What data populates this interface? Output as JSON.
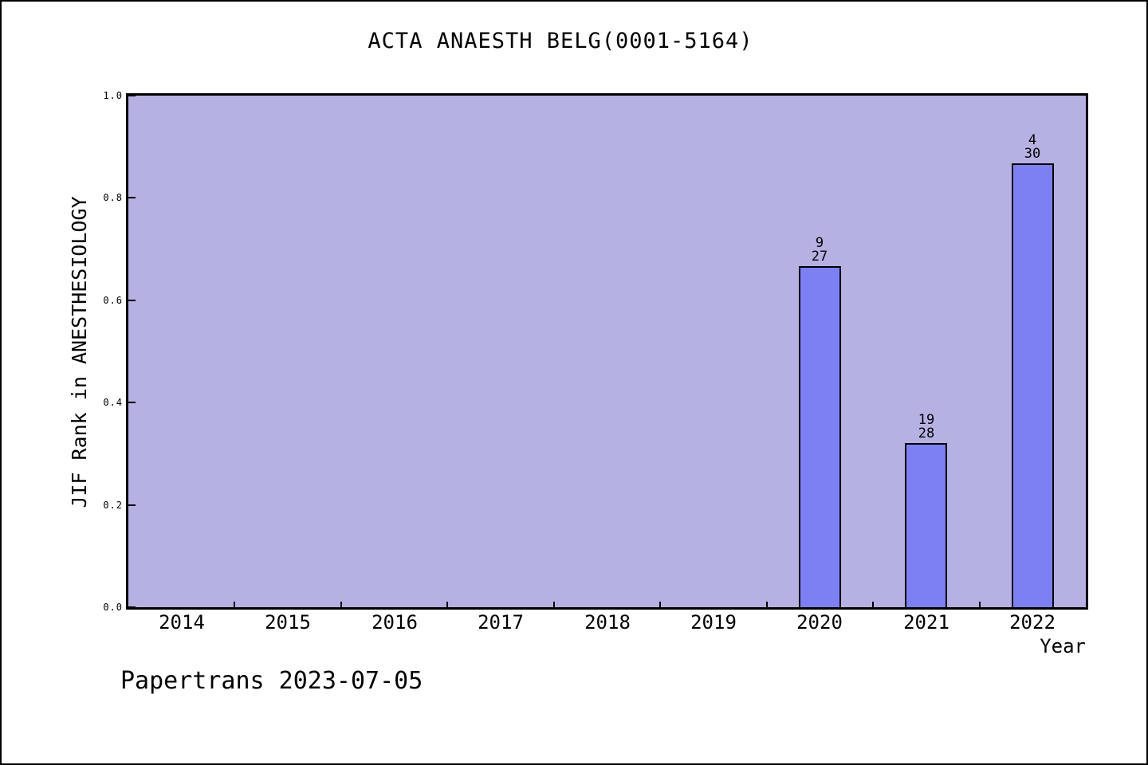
{
  "figure": {
    "watermark": "Papertrans 2023-07-05"
  },
  "chart_data": {
    "type": "bar",
    "title": "ACTA ANAESTH BELG(0001-5164)",
    "xlabel": "Year",
    "ylabel": "JIF Rank in ANESTHESIOLOGY",
    "categories": [
      2014,
      2015,
      2016,
      2017,
      2018,
      2019,
      2020,
      2021,
      2022
    ],
    "xlim": [
      2013.5,
      2022.5
    ],
    "ylim": [
      0.0,
      1.0
    ],
    "yticks": [
      0.0,
      0.2,
      0.4,
      0.6,
      0.8,
      1.0
    ],
    "ytick_labels": [
      "0.0",
      "0.2",
      "0.4",
      "0.6",
      "0.8",
      "1.0"
    ],
    "xticks_minor": [
      2014.5,
      2015.5,
      2016.5,
      2017.5,
      2018.5,
      2019.5,
      2020.5,
      2021.5
    ],
    "bar_width_years": 0.4,
    "grid": false,
    "legend": null,
    "bars": [
      {
        "x": 2020,
        "value": 0.667,
        "rank": "9",
        "total": "27"
      },
      {
        "x": 2021,
        "value": 0.321,
        "rank": "19",
        "total": "28"
      },
      {
        "x": 2022,
        "value": 0.867,
        "rank": "4",
        "total": "30"
      }
    ],
    "colors": {
      "bar_fill": "#7d80f3",
      "bar_edge": "#000000",
      "plot_bg": "#b5b1e2",
      "figure_bg": "#ffffff",
      "axis": "#000000",
      "text": "#000000"
    }
  }
}
